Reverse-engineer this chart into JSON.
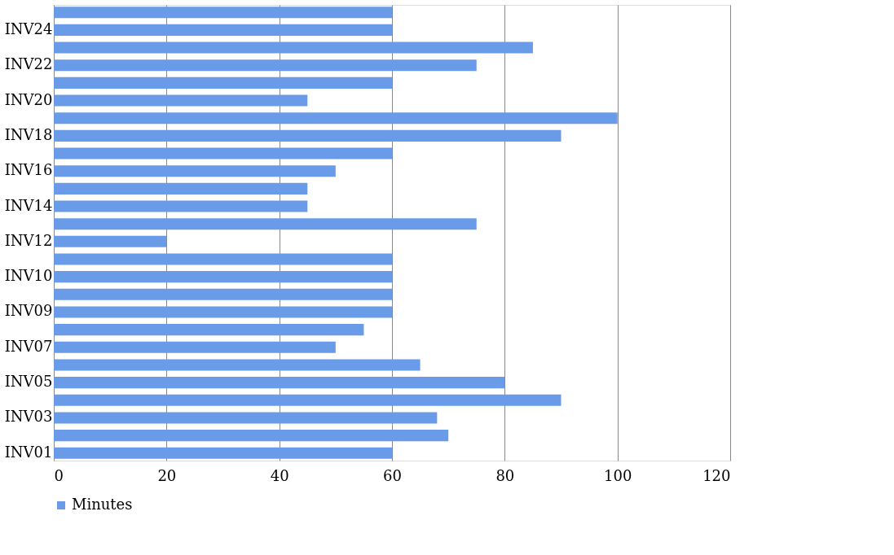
{
  "chart_data": {
    "type": "bar",
    "orientation": "horizontal",
    "categories": [
      null,
      "INV24",
      null,
      "INV22",
      null,
      "INV20",
      null,
      "INV18",
      null,
      "INV16",
      null,
      "INV14",
      null,
      "INV12",
      null,
      "INV10",
      null,
      "INV09",
      null,
      "INV07",
      null,
      "INV05",
      null,
      "INV03",
      null,
      "INV01"
    ],
    "series": [
      {
        "name": "Minutes",
        "color": "#6a9be8",
        "values": [
          60,
          60,
          85,
          75,
          60,
          45,
          100,
          90,
          60,
          50,
          45,
          45,
          75,
          20,
          60,
          60,
          60,
          60,
          55,
          50,
          65,
          80,
          90,
          68,
          70,
          60
        ]
      }
    ],
    "xlim": [
      0,
      120
    ],
    "xticks": [
      0,
      20,
      40,
      60,
      80,
      100,
      120
    ],
    "grid": "x",
    "legend": "bottom"
  }
}
